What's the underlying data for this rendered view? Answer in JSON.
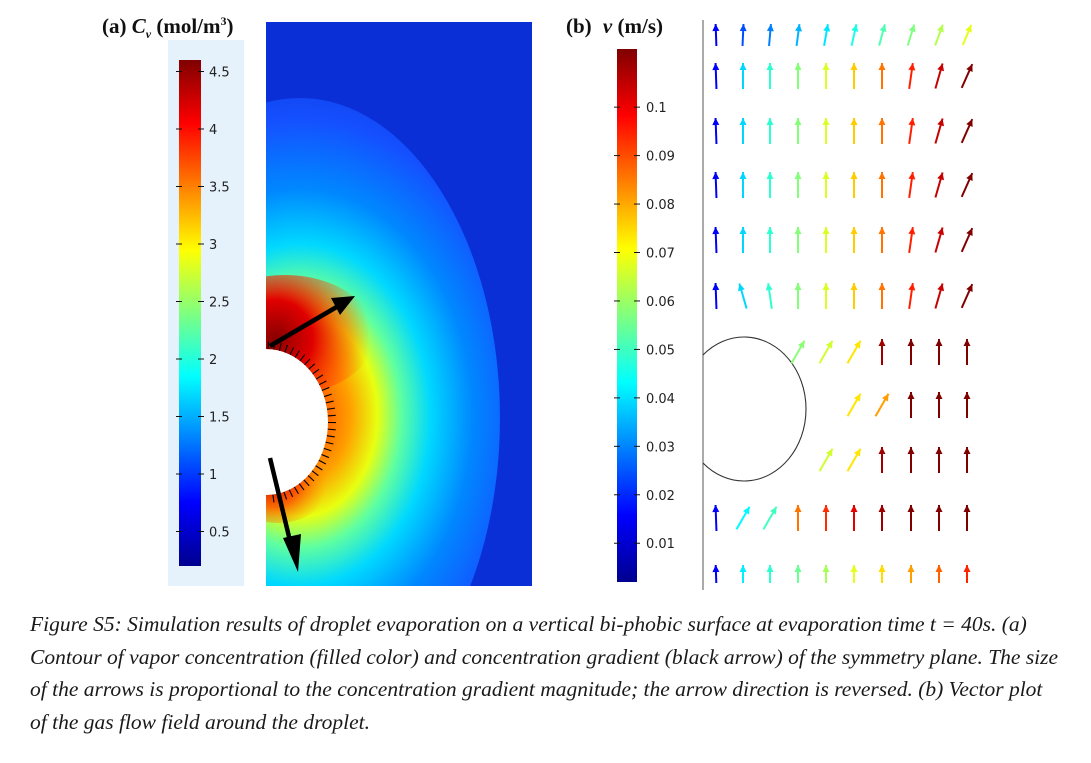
{
  "panel_a": {
    "label": "(a)",
    "variable": "C",
    "subscript": "v",
    "unit_open": "(mol/m",
    "unit_exp": "3",
    "unit_close": ")",
    "colorbar_ticks": [
      "4.5",
      "4",
      "3.5",
      "3",
      "2.5",
      "2",
      "1.5",
      "1",
      "0.5"
    ],
    "colorbar_tick_values": [
      4.5,
      4,
      3.5,
      3,
      2.5,
      2,
      1.5,
      1,
      0.5
    ],
    "colorbar_range": [
      0.2,
      4.6
    ],
    "colormap": "jet",
    "background_color": "#0a2fd6"
  },
  "panel_b": {
    "label": "(b)",
    "variable": "v",
    "unit": "(m/s)",
    "colorbar_ticks": [
      "0.1",
      "0.09",
      "0.08",
      "0.07",
      "0.06",
      "0.05",
      "0.04",
      "0.03",
      "0.02",
      "0.01"
    ],
    "colorbar_tick_values": [
      0.1,
      0.09,
      0.08,
      0.07,
      0.06,
      0.05,
      0.04,
      0.03,
      0.02,
      0.01
    ],
    "colorbar_range": [
      0.002,
      0.112
    ],
    "colormap": "jet"
  },
  "caption": {
    "text": "Figure S5: Simulation results of droplet evaporation on a vertical bi-phobic surface at evaporation time t = 40s. (a) Contour of vapor concentration (filled color) and concentration gradient (black arrow) of the symmetry plane. The size of the arrows is proportional to the concentration gradient magnitude; the arrow direction is reversed. (b) Vector plot of the gas flow field around the droplet."
  },
  "colors": {
    "jet_dark_red": "#7f0000",
    "jet_red": "#ff2000",
    "jet_yellow": "#ffff00",
    "jet_cyan": "#00ffff",
    "jet_blue": "#0000ff",
    "jet_dark_blue": "#00008f",
    "arrow_black": "#000000"
  }
}
